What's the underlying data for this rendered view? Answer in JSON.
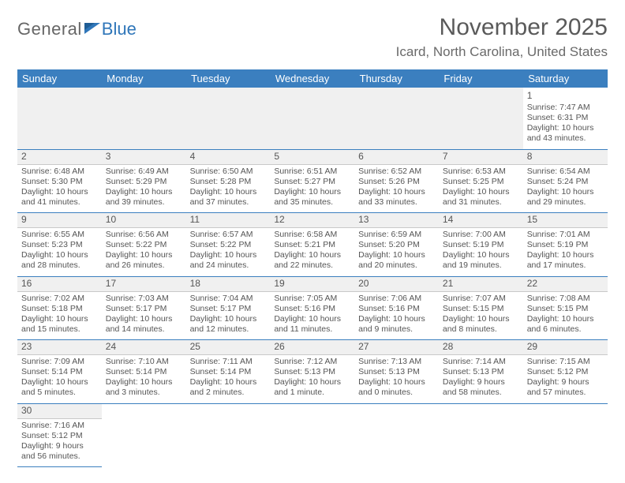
{
  "brand": {
    "part1": "General",
    "part2": "Blue"
  },
  "title": "November 2025",
  "location": "Icard, North Carolina, United States",
  "header_bg": "#3b7fbf",
  "header_fg": "#ffffff",
  "rule_color": "#3b7fbf",
  "text_color": "#555555",
  "day_headers": [
    "Sunday",
    "Monday",
    "Tuesday",
    "Wednesday",
    "Thursday",
    "Friday",
    "Saturday"
  ],
  "weeks": [
    [
      null,
      null,
      null,
      null,
      null,
      null,
      {
        "n": "1",
        "sr": "Sunrise: 7:47 AM",
        "ss": "Sunset: 6:31 PM",
        "d1": "Daylight: 10 hours",
        "d2": "and 43 minutes."
      }
    ],
    [
      {
        "n": "2",
        "sr": "Sunrise: 6:48 AM",
        "ss": "Sunset: 5:30 PM",
        "d1": "Daylight: 10 hours",
        "d2": "and 41 minutes."
      },
      {
        "n": "3",
        "sr": "Sunrise: 6:49 AM",
        "ss": "Sunset: 5:29 PM",
        "d1": "Daylight: 10 hours",
        "d2": "and 39 minutes."
      },
      {
        "n": "4",
        "sr": "Sunrise: 6:50 AM",
        "ss": "Sunset: 5:28 PM",
        "d1": "Daylight: 10 hours",
        "d2": "and 37 minutes."
      },
      {
        "n": "5",
        "sr": "Sunrise: 6:51 AM",
        "ss": "Sunset: 5:27 PM",
        "d1": "Daylight: 10 hours",
        "d2": "and 35 minutes."
      },
      {
        "n": "6",
        "sr": "Sunrise: 6:52 AM",
        "ss": "Sunset: 5:26 PM",
        "d1": "Daylight: 10 hours",
        "d2": "and 33 minutes."
      },
      {
        "n": "7",
        "sr": "Sunrise: 6:53 AM",
        "ss": "Sunset: 5:25 PM",
        "d1": "Daylight: 10 hours",
        "d2": "and 31 minutes."
      },
      {
        "n": "8",
        "sr": "Sunrise: 6:54 AM",
        "ss": "Sunset: 5:24 PM",
        "d1": "Daylight: 10 hours",
        "d2": "and 29 minutes."
      }
    ],
    [
      {
        "n": "9",
        "sr": "Sunrise: 6:55 AM",
        "ss": "Sunset: 5:23 PM",
        "d1": "Daylight: 10 hours",
        "d2": "and 28 minutes."
      },
      {
        "n": "10",
        "sr": "Sunrise: 6:56 AM",
        "ss": "Sunset: 5:22 PM",
        "d1": "Daylight: 10 hours",
        "d2": "and 26 minutes."
      },
      {
        "n": "11",
        "sr": "Sunrise: 6:57 AM",
        "ss": "Sunset: 5:22 PM",
        "d1": "Daylight: 10 hours",
        "d2": "and 24 minutes."
      },
      {
        "n": "12",
        "sr": "Sunrise: 6:58 AM",
        "ss": "Sunset: 5:21 PM",
        "d1": "Daylight: 10 hours",
        "d2": "and 22 minutes."
      },
      {
        "n": "13",
        "sr": "Sunrise: 6:59 AM",
        "ss": "Sunset: 5:20 PM",
        "d1": "Daylight: 10 hours",
        "d2": "and 20 minutes."
      },
      {
        "n": "14",
        "sr": "Sunrise: 7:00 AM",
        "ss": "Sunset: 5:19 PM",
        "d1": "Daylight: 10 hours",
        "d2": "and 19 minutes."
      },
      {
        "n": "15",
        "sr": "Sunrise: 7:01 AM",
        "ss": "Sunset: 5:19 PM",
        "d1": "Daylight: 10 hours",
        "d2": "and 17 minutes."
      }
    ],
    [
      {
        "n": "16",
        "sr": "Sunrise: 7:02 AM",
        "ss": "Sunset: 5:18 PM",
        "d1": "Daylight: 10 hours",
        "d2": "and 15 minutes."
      },
      {
        "n": "17",
        "sr": "Sunrise: 7:03 AM",
        "ss": "Sunset: 5:17 PM",
        "d1": "Daylight: 10 hours",
        "d2": "and 14 minutes."
      },
      {
        "n": "18",
        "sr": "Sunrise: 7:04 AM",
        "ss": "Sunset: 5:17 PM",
        "d1": "Daylight: 10 hours",
        "d2": "and 12 minutes."
      },
      {
        "n": "19",
        "sr": "Sunrise: 7:05 AM",
        "ss": "Sunset: 5:16 PM",
        "d1": "Daylight: 10 hours",
        "d2": "and 11 minutes."
      },
      {
        "n": "20",
        "sr": "Sunrise: 7:06 AM",
        "ss": "Sunset: 5:16 PM",
        "d1": "Daylight: 10 hours",
        "d2": "and 9 minutes."
      },
      {
        "n": "21",
        "sr": "Sunrise: 7:07 AM",
        "ss": "Sunset: 5:15 PM",
        "d1": "Daylight: 10 hours",
        "d2": "and 8 minutes."
      },
      {
        "n": "22",
        "sr": "Sunrise: 7:08 AM",
        "ss": "Sunset: 5:15 PM",
        "d1": "Daylight: 10 hours",
        "d2": "and 6 minutes."
      }
    ],
    [
      {
        "n": "23",
        "sr": "Sunrise: 7:09 AM",
        "ss": "Sunset: 5:14 PM",
        "d1": "Daylight: 10 hours",
        "d2": "and 5 minutes."
      },
      {
        "n": "24",
        "sr": "Sunrise: 7:10 AM",
        "ss": "Sunset: 5:14 PM",
        "d1": "Daylight: 10 hours",
        "d2": "and 3 minutes."
      },
      {
        "n": "25",
        "sr": "Sunrise: 7:11 AM",
        "ss": "Sunset: 5:14 PM",
        "d1": "Daylight: 10 hours",
        "d2": "and 2 minutes."
      },
      {
        "n": "26",
        "sr": "Sunrise: 7:12 AM",
        "ss": "Sunset: 5:13 PM",
        "d1": "Daylight: 10 hours",
        "d2": "and 1 minute."
      },
      {
        "n": "27",
        "sr": "Sunrise: 7:13 AM",
        "ss": "Sunset: 5:13 PM",
        "d1": "Daylight: 10 hours",
        "d2": "and 0 minutes."
      },
      {
        "n": "28",
        "sr": "Sunrise: 7:14 AM",
        "ss": "Sunset: 5:13 PM",
        "d1": "Daylight: 9 hours",
        "d2": "and 58 minutes."
      },
      {
        "n": "29",
        "sr": "Sunrise: 7:15 AM",
        "ss": "Sunset: 5:12 PM",
        "d1": "Daylight: 9 hours",
        "d2": "and 57 minutes."
      }
    ],
    [
      {
        "n": "30",
        "sr": "Sunrise: 7:16 AM",
        "ss": "Sunset: 5:12 PM",
        "d1": "Daylight: 9 hours",
        "d2": "and 56 minutes."
      },
      null,
      null,
      null,
      null,
      null,
      null
    ]
  ]
}
